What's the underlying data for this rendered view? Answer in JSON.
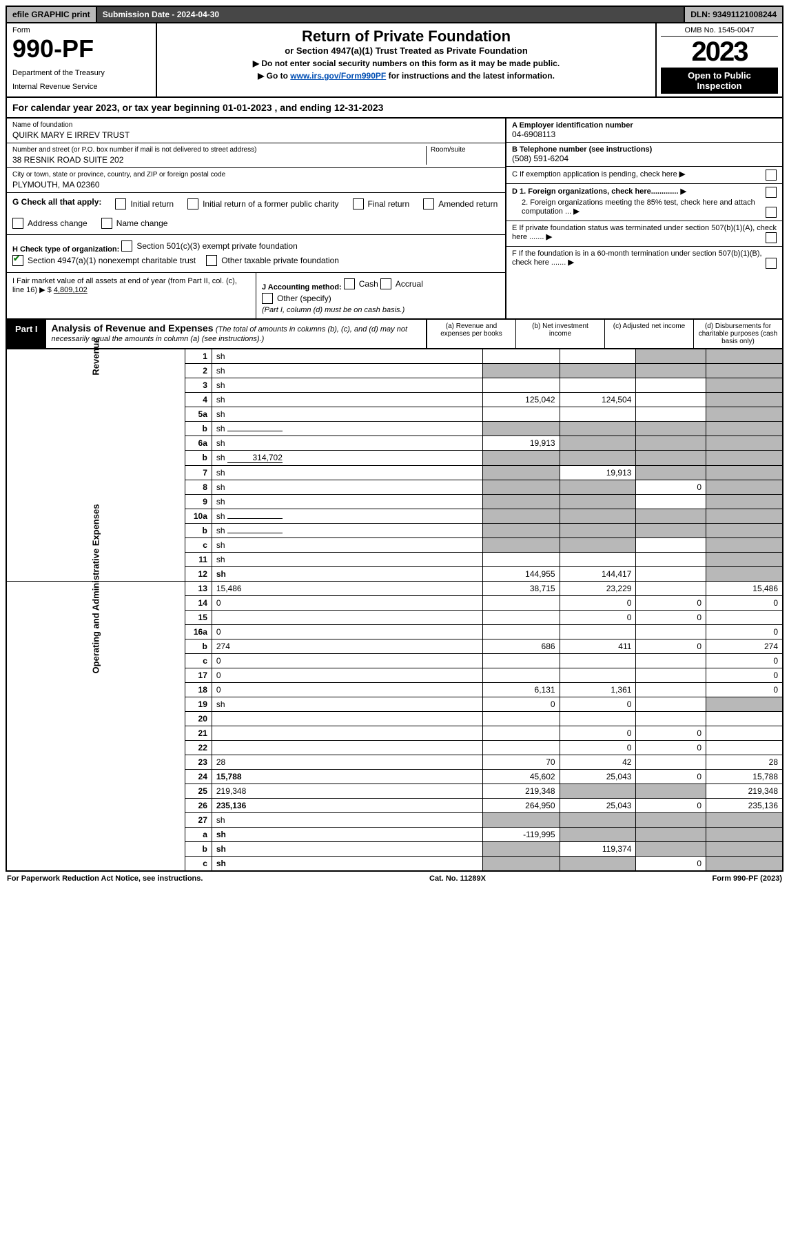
{
  "top": {
    "efile": "efile GRAPHIC print",
    "subdate": "Submission Date - 2024-04-30",
    "dln": "DLN: 93491121008244"
  },
  "header": {
    "form_label": "Form",
    "form_number": "990-PF",
    "dept1": "Department of the Treasury",
    "dept2": "Internal Revenue Service",
    "title": "Return of Private Foundation",
    "subtitle": "or Section 4947(a)(1) Trust Treated as Private Foundation",
    "note1": "▶ Do not enter social security numbers on this form as it may be made public.",
    "note2_prefix": "▶ Go to ",
    "note2_link": "www.irs.gov/Form990PF",
    "note2_suffix": " for instructions and the latest information.",
    "omb": "OMB No. 1545-0047",
    "year": "2023",
    "open1": "Open to Public",
    "open2": "Inspection"
  },
  "calendar": "For calendar year 2023, or tax year beginning 01-01-2023                                 , and ending 12-31-2023",
  "info_left": {
    "name_lbl": "Name of foundation",
    "name": "QUIRK MARY E IRREV TRUST",
    "addr_lbl": "Number and street (or P.O. box number if mail is not delivered to street address)",
    "room_lbl": "Room/suite",
    "addr": "38 RESNIK ROAD SUITE 202",
    "city_lbl": "City or town, state or province, country, and ZIP or foreign postal code",
    "city": "PLYMOUTH, MA  02360"
  },
  "info_right": {
    "a_lbl": "A Employer identification number",
    "a_val": "04-6908113",
    "b_lbl": "B Telephone number (see instructions)",
    "b_val": "(508) 591-6204",
    "c_lbl": "C If exemption application is pending, check here",
    "d1_lbl": "D 1. Foreign organizations, check here.............",
    "d2_lbl": "2. Foreign organizations meeting the 85% test, check here and attach computation ...",
    "e_lbl": "E  If private foundation status was terminated under section 507(b)(1)(A), check here .......",
    "f_lbl": "F  If the foundation is in a 60-month termination under section 507(b)(1)(B), check here ......."
  },
  "g": {
    "label": "G Check all that apply:",
    "opts": [
      "Initial return",
      "Final return",
      "Address change",
      "Initial return of a former public charity",
      "Amended return",
      "Name change"
    ]
  },
  "h": {
    "label": "H Check type of organization:",
    "opt1": "Section 501(c)(3) exempt private foundation",
    "opt2": "Section 4947(a)(1) nonexempt charitable trust",
    "opt3": "Other taxable private foundation"
  },
  "i": {
    "label": "I Fair market value of all assets at end of year (from Part II, col. (c), line 16) ▶ $",
    "val": "4,809,102"
  },
  "j": {
    "label": "J Accounting method:",
    "cash": "Cash",
    "accrual": "Accrual",
    "other": "Other (specify)",
    "note": "(Part I, column (d) must be on cash basis.)"
  },
  "part1": {
    "tag": "Part I",
    "title": "Analysis of Revenue and Expenses",
    "note": "(The total of amounts in columns (b), (c), and (d) may not necessarily equal the amounts in column (a) (see instructions).)",
    "cols": {
      "a": "(a)  Revenue and expenses per books",
      "b": "(b)  Net investment income",
      "c": "(c)  Adjusted net income",
      "d": "(d)  Disbursements for charitable purposes (cash basis only)"
    }
  },
  "side": {
    "revenue": "Revenue",
    "opexp": "Operating and Administrative Expenses"
  },
  "rows": [
    {
      "n": "1",
      "d": "sh",
      "a": "",
      "b": "",
      "c": "sh"
    },
    {
      "n": "2",
      "d": "sh",
      "dot": true,
      "a": "sh",
      "b": "sh",
      "c": "sh"
    },
    {
      "n": "3",
      "d": "sh",
      "a": "",
      "b": "",
      "c": ""
    },
    {
      "n": "4",
      "d": "sh",
      "dot": true,
      "a": "125,042",
      "b": "124,504",
      "c": ""
    },
    {
      "n": "5a",
      "d": "sh",
      "dot": true,
      "a": "",
      "b": "",
      "c": ""
    },
    {
      "n": "b",
      "d": "sh",
      "inline": "",
      "a": "sh",
      "b": "sh",
      "c": "sh"
    },
    {
      "n": "6a",
      "d": "sh",
      "a": "19,913",
      "b": "sh",
      "c": "sh"
    },
    {
      "n": "b",
      "d": "sh",
      "inline": "314,702",
      "a": "sh",
      "b": "sh",
      "c": "sh"
    },
    {
      "n": "7",
      "d": "sh",
      "dot": true,
      "a": "sh",
      "b": "19,913",
      "c": "sh"
    },
    {
      "n": "8",
      "d": "sh",
      "dot": true,
      "a": "sh",
      "b": "sh",
      "c": "0"
    },
    {
      "n": "9",
      "d": "sh",
      "dot": true,
      "a": "sh",
      "b": "sh",
      "c": ""
    },
    {
      "n": "10a",
      "d": "sh",
      "inline": "",
      "a": "sh",
      "b": "sh",
      "c": "sh"
    },
    {
      "n": "b",
      "d": "sh",
      "dot": true,
      "inline": "",
      "a": "sh",
      "b": "sh",
      "c": "sh"
    },
    {
      "n": "c",
      "d": "sh",
      "dot": true,
      "a": "sh",
      "b": "sh",
      "c": ""
    },
    {
      "n": "11",
      "d": "sh",
      "dot": true,
      "a": "",
      "b": "",
      "c": ""
    },
    {
      "n": "12",
      "d": "sh",
      "dot": true,
      "bold": true,
      "a": "144,955",
      "b": "144,417",
      "c": ""
    },
    {
      "n": "13",
      "d": "15,486",
      "a": "38,715",
      "b": "23,229",
      "c": ""
    },
    {
      "n": "14",
      "d": "0",
      "dot": true,
      "a": "",
      "b": "0",
      "c": "0"
    },
    {
      "n": "15",
      "d": "",
      "dot": true,
      "a": "",
      "b": "0",
      "c": "0"
    },
    {
      "n": "16a",
      "d": "0",
      "dot": true,
      "a": "",
      "b": "",
      "c": ""
    },
    {
      "n": "b",
      "d": "274",
      "dot": true,
      "a": "686",
      "b": "411",
      "c": "0"
    },
    {
      "n": "c",
      "d": "0",
      "dot": true,
      "a": "",
      "b": "",
      "c": ""
    },
    {
      "n": "17",
      "d": "0",
      "dot": true,
      "a": "",
      "b": "",
      "c": ""
    },
    {
      "n": "18",
      "d": "0",
      "dot": true,
      "a": "6,131",
      "b": "1,361",
      "c": ""
    },
    {
      "n": "19",
      "d": "sh",
      "dot": true,
      "a": "0",
      "b": "0",
      "c": ""
    },
    {
      "n": "20",
      "d": "",
      "dot": true,
      "a": "",
      "b": "",
      "c": ""
    },
    {
      "n": "21",
      "d": "",
      "dot": true,
      "a": "",
      "b": "0",
      "c": "0"
    },
    {
      "n": "22",
      "d": "",
      "dot": true,
      "a": "",
      "b": "0",
      "c": "0"
    },
    {
      "n": "23",
      "d": "28",
      "dot": true,
      "a": "70",
      "b": "42",
      "c": ""
    },
    {
      "n": "24",
      "d": "15,788",
      "dot": true,
      "bold": true,
      "a": "45,602",
      "b": "25,043",
      "c": "0"
    },
    {
      "n": "25",
      "d": "219,348",
      "dot": true,
      "a": "219,348",
      "b": "sh",
      "c": "sh"
    },
    {
      "n": "26",
      "d": "235,136",
      "bold": true,
      "a": "264,950",
      "b": "25,043",
      "c": "0"
    },
    {
      "n": "27",
      "d": "sh",
      "a": "sh",
      "b": "sh",
      "c": "sh"
    },
    {
      "n": "a",
      "d": "sh",
      "bold": true,
      "a": "-119,995",
      "b": "sh",
      "c": "sh"
    },
    {
      "n": "b",
      "d": "sh",
      "bold": true,
      "a": "sh",
      "b": "119,374",
      "c": "sh"
    },
    {
      "n": "c",
      "d": "sh",
      "dot": true,
      "bold": true,
      "a": "sh",
      "b": "sh",
      "c": "0"
    }
  ],
  "footer": {
    "left": "For Paperwork Reduction Act Notice, see instructions.",
    "mid": "Cat. No. 11289X",
    "right": "Form 990-PF (2023)"
  }
}
